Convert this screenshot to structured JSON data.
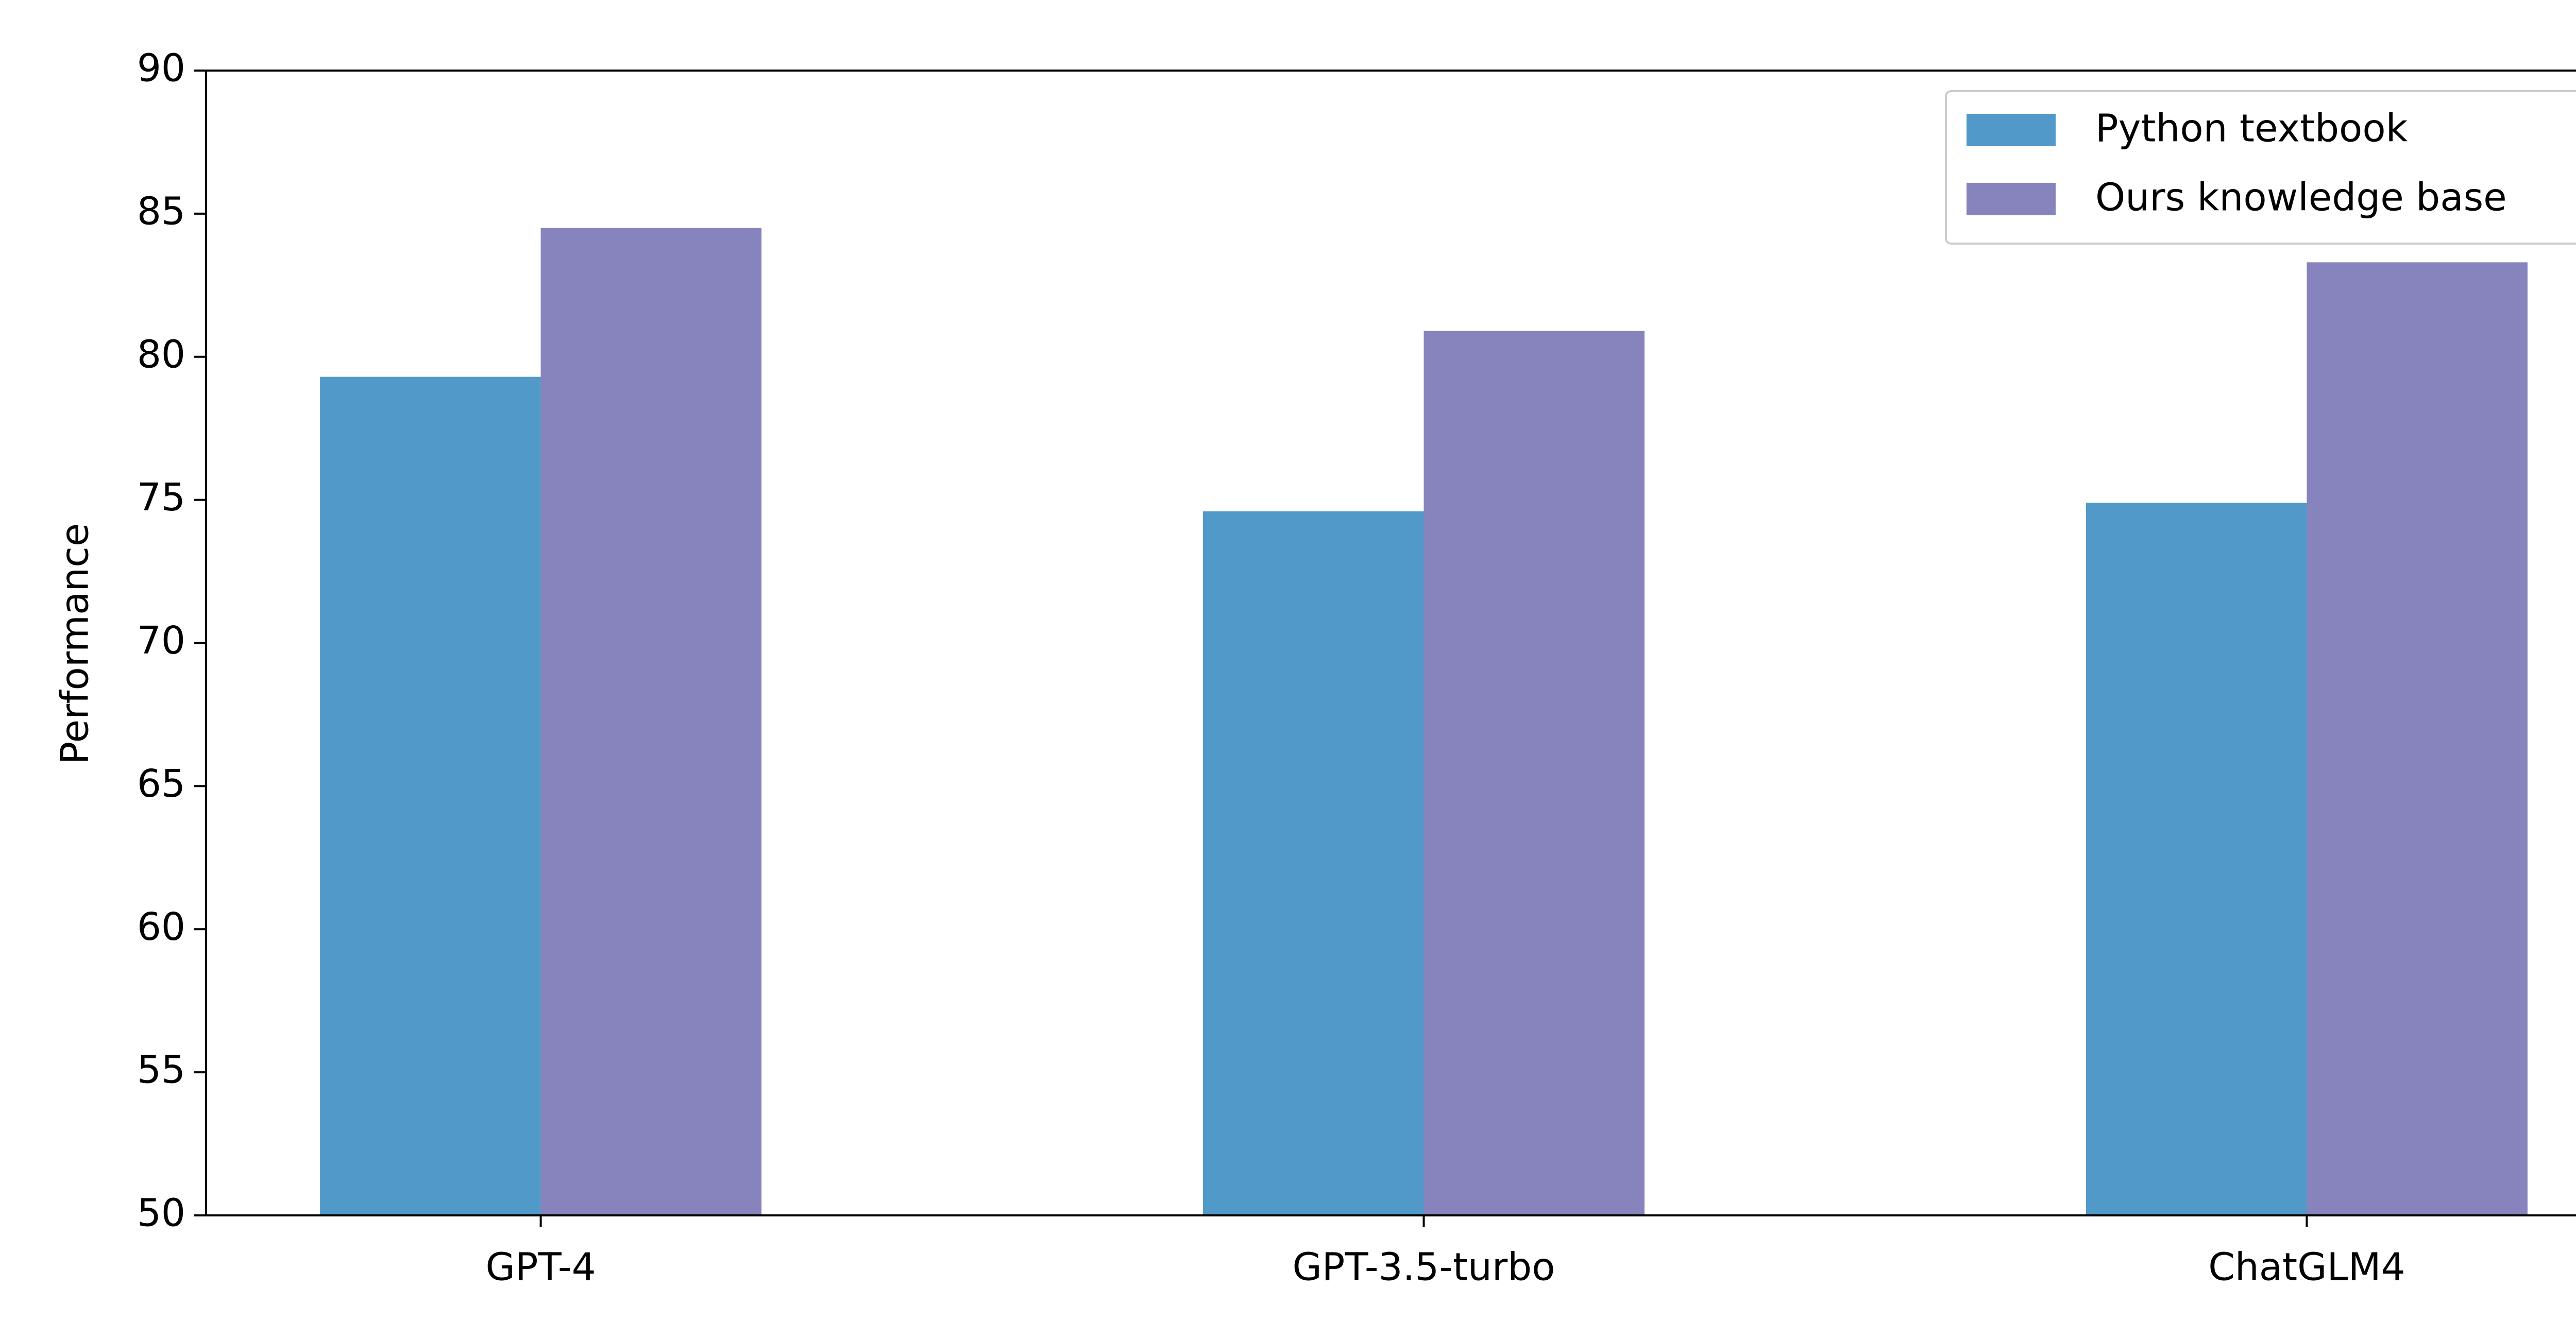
{
  "chart_data": {
    "type": "bar",
    "y_label": "Performance",
    "categories": [
      "GPT-4",
      "GPT-3.5-turbo",
      "ChatGLM4"
    ],
    "series": [
      {
        "name": "Python textbook",
        "color": "#5199c8",
        "values": [
          79.3,
          74.6,
          74.9
        ]
      },
      {
        "name": "Ours knowledge base",
        "color": "#8683bd",
        "values": [
          84.5,
          80.9,
          83.3
        ]
      }
    ],
    "ylim": [
      50,
      90
    ],
    "yticks": [
      50,
      55,
      60,
      65,
      70,
      75,
      80,
      85,
      90
    ],
    "grid": false,
    "legend": "upper right"
  }
}
